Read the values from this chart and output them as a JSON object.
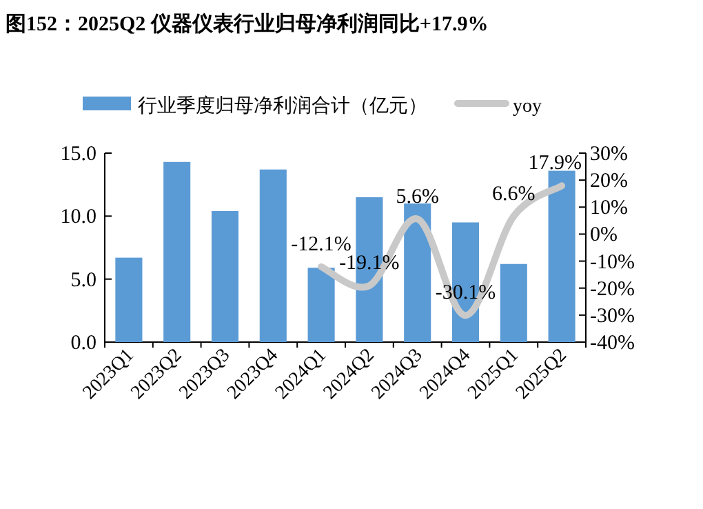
{
  "chart_data": {
    "type": "bar",
    "title": "图152：2025Q2 仪器仪表行业归母净利润同比+17.9%",
    "categories": [
      "2023Q1",
      "2023Q2",
      "2023Q3",
      "2023Q4",
      "2024Q1",
      "2024Q2",
      "2024Q3",
      "2024Q4",
      "2025Q1",
      "2025Q2"
    ],
    "series": [
      {
        "name": "行业季度归母净利润合计（亿元）",
        "color": "#5b9bd5",
        "values": [
          6.7,
          14.3,
          10.4,
          13.7,
          5.9,
          11.5,
          11.0,
          9.5,
          6.2,
          13.6
        ]
      },
      {
        "name": "yoy",
        "type": "line",
        "axis": "y2",
        "color": "#c9c9c9",
        "values": [
          null,
          null,
          null,
          null,
          -12.1,
          -19.1,
          5.6,
          -30.1,
          6.6,
          17.9
        ],
        "value_labels": [
          null,
          null,
          null,
          null,
          "-12.1%",
          "-19.1%",
          "5.6%",
          "-30.1%",
          "6.6%",
          "17.9%"
        ]
      }
    ],
    "ylim": [
      0,
      15
    ],
    "yticks": [
      {
        "value": 0,
        "label": "0.0"
      },
      {
        "value": 5,
        "label": "5.0"
      },
      {
        "value": 10,
        "label": "10.0"
      },
      {
        "value": 15,
        "label": "15.0"
      }
    ],
    "y2lim": [
      -40,
      30
    ],
    "y2ticks": [
      {
        "value": -40,
        "label": "-40%"
      },
      {
        "value": -30,
        "label": "-30%"
      },
      {
        "value": -20,
        "label": "-20%"
      },
      {
        "value": -10,
        "label": "-10%"
      },
      {
        "value": 0,
        "label": "0%"
      },
      {
        "value": 10,
        "label": "10%"
      },
      {
        "value": 20,
        "label": "20%"
      },
      {
        "value": 30,
        "label": "30%"
      }
    ],
    "legend": "top",
    "grid": false
  }
}
